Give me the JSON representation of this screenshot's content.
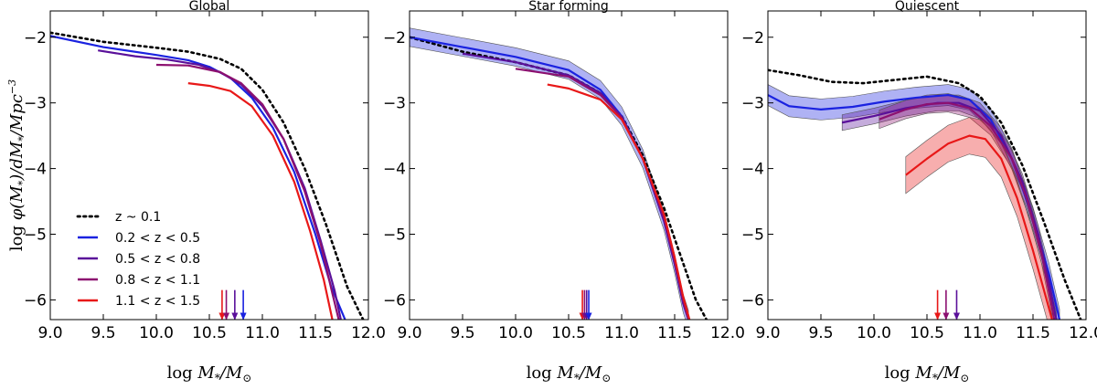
{
  "colors": {
    "local": "#000000",
    "z02_05": "#1a22e0",
    "z05_08": "#5a109a",
    "z08_11": "#8c1070",
    "z11_15": "#e81818"
  },
  "chart_data": [
    {
      "type": "line",
      "title": "Global",
      "xlabel": "log M*/M⊙",
      "ylabel": "log φ(M*)/dM*/Mpc⁻³",
      "xlim": [
        9.0,
        12.0
      ],
      "ylim": [
        -6.3,
        -1.6
      ],
      "xticks": [
        "9.0",
        "9.5",
        "10.0",
        "10.5",
        "11.0",
        "11.5",
        "12.0"
      ],
      "yticks": [
        "−2",
        "−3",
        "−4",
        "−5",
        "−6"
      ],
      "legend": {
        "position": "lower-left",
        "entries": [
          "z ~ 0.1",
          "0.2 < z < 0.5",
          "0.5 < z < 0.8",
          "0.8 < z < 1.1",
          "1.1 < z < 1.5"
        ]
      },
      "series": [
        {
          "key": "local",
          "style": "dotted",
          "x": [
            9.0,
            9.5,
            10.0,
            10.3,
            10.6,
            10.8,
            11.0,
            11.2,
            11.4,
            11.6,
            11.8,
            11.95
          ],
          "y": [
            -1.93,
            -2.07,
            -2.16,
            -2.22,
            -2.33,
            -2.48,
            -2.8,
            -3.3,
            -4.0,
            -4.85,
            -5.8,
            -6.3
          ]
        },
        {
          "key": "z02_05",
          "style": "solid",
          "x": [
            9.0,
            9.5,
            10.0,
            10.3,
            10.5,
            10.7,
            10.9,
            11.1,
            11.3,
            11.5,
            11.65,
            11.78
          ],
          "y": [
            -1.98,
            -2.15,
            -2.27,
            -2.35,
            -2.45,
            -2.62,
            -2.92,
            -3.38,
            -4.05,
            -5.0,
            -5.8,
            -6.3
          ]
        },
        {
          "key": "z05_08",
          "style": "solid",
          "x": [
            9.45,
            9.8,
            10.1,
            10.4,
            10.6,
            10.8,
            11.0,
            11.2,
            11.4,
            11.55,
            11.68,
            11.74
          ],
          "y": [
            -2.2,
            -2.29,
            -2.34,
            -2.42,
            -2.53,
            -2.72,
            -3.05,
            -3.55,
            -4.3,
            -5.1,
            -5.85,
            -6.3
          ]
        },
        {
          "key": "z08_11",
          "style": "solid",
          "x": [
            10.0,
            10.3,
            10.6,
            10.8,
            11.0,
            11.2,
            11.4,
            11.55,
            11.66,
            11.72
          ],
          "y": [
            -2.42,
            -2.43,
            -2.53,
            -2.7,
            -3.02,
            -3.55,
            -4.35,
            -5.15,
            -5.9,
            -6.3
          ]
        },
        {
          "key": "z11_15",
          "style": "solid",
          "x": [
            10.3,
            10.5,
            10.7,
            10.9,
            11.1,
            11.3,
            11.45,
            11.58,
            11.66
          ],
          "y": [
            -2.7,
            -2.74,
            -2.82,
            -3.05,
            -3.5,
            -4.2,
            -4.95,
            -5.7,
            -6.3
          ]
        }
      ],
      "arrows": [
        {
          "key": "z11_15",
          "x": 10.62
        },
        {
          "key": "z08_11",
          "x": 10.66
        },
        {
          "key": "z05_08",
          "x": 10.74
        },
        {
          "key": "z02_05",
          "x": 10.82
        }
      ]
    },
    {
      "type": "line",
      "title": "Star forming",
      "xlabel": "log M*/M⊙",
      "xlim": [
        9.0,
        12.0
      ],
      "ylim": [
        -6.3,
        -1.6
      ],
      "xticks": [
        "9.0",
        "9.5",
        "10.0",
        "10.5",
        "11.0",
        "11.5",
        "12.0"
      ],
      "yticks": [
        "−2",
        "−3",
        "−4",
        "−5",
        "−6"
      ],
      "series": [
        {
          "key": "local",
          "style": "dotted",
          "x": [
            9.0,
            9.5,
            10.0,
            10.5,
            10.8,
            11.0,
            11.2,
            11.4,
            11.55,
            11.7,
            11.8
          ],
          "y": [
            -2.0,
            -2.22,
            -2.38,
            -2.58,
            -2.85,
            -3.2,
            -3.8,
            -4.6,
            -5.3,
            -6.0,
            -6.3
          ]
        },
        {
          "key": "z02_05",
          "style": "solid",
          "band": 0.14,
          "x": [
            9.0,
            9.5,
            10.0,
            10.5,
            10.8,
            11.0,
            11.2,
            11.4,
            11.5,
            11.58,
            11.63
          ],
          "y": [
            -2.0,
            -2.15,
            -2.3,
            -2.5,
            -2.8,
            -3.2,
            -3.85,
            -4.8,
            -5.45,
            -6.05,
            -6.3
          ]
        },
        {
          "key": "z05_08",
          "style": "solid",
          "x": [
            9.5,
            10.0,
            10.5,
            10.8,
            11.0,
            11.2,
            11.4,
            11.5,
            11.58,
            11.63
          ],
          "y": [
            -2.25,
            -2.38,
            -2.58,
            -2.85,
            -3.22,
            -3.85,
            -4.8,
            -5.45,
            -6.05,
            -6.3
          ]
        },
        {
          "key": "z08_11",
          "style": "solid",
          "x": [
            10.0,
            10.5,
            10.8,
            11.0,
            11.2,
            11.4,
            11.5,
            11.58,
            11.63
          ],
          "y": [
            -2.48,
            -2.6,
            -2.88,
            -3.22,
            -3.85,
            -4.75,
            -5.4,
            -6.0,
            -6.3
          ]
        },
        {
          "key": "z11_15",
          "style": "solid",
          "x": [
            10.3,
            10.5,
            10.8,
            11.0,
            11.2,
            11.4,
            11.5,
            11.58,
            11.64
          ],
          "y": [
            -2.72,
            -2.78,
            -2.95,
            -3.25,
            -3.85,
            -4.7,
            -5.35,
            -5.95,
            -6.3
          ]
        }
      ],
      "arrows": [
        {
          "key": "z11_15",
          "x": 10.63
        },
        {
          "key": "z08_11",
          "x": 10.65
        },
        {
          "key": "z05_08",
          "x": 10.67
        },
        {
          "key": "z02_05",
          "x": 10.69
        }
      ]
    },
    {
      "type": "line",
      "title": "Quiescent",
      "xlabel": "log M*/M⊙",
      "xlim": [
        9.0,
        12.0
      ],
      "ylim": [
        -6.3,
        -1.6
      ],
      "xticks": [
        "9.0",
        "9.5",
        "10.0",
        "10.5",
        "11.0",
        "11.5",
        "12.0"
      ],
      "yticks": [
        "−2",
        "−3",
        "−4",
        "−5",
        "−6"
      ],
      "series": [
        {
          "key": "local",
          "style": "dotted",
          "x": [
            9.0,
            9.3,
            9.6,
            9.9,
            10.2,
            10.5,
            10.8,
            11.0,
            11.2,
            11.4,
            11.6,
            11.8,
            11.95
          ],
          "y": [
            -2.5,
            -2.58,
            -2.68,
            -2.7,
            -2.65,
            -2.6,
            -2.7,
            -2.9,
            -3.3,
            -3.95,
            -4.8,
            -5.7,
            -6.3
          ]
        },
        {
          "key": "z02_05",
          "style": "solid",
          "band": 0.16,
          "x": [
            9.0,
            9.2,
            9.5,
            9.8,
            10.1,
            10.4,
            10.7,
            10.9,
            11.1,
            11.3,
            11.5,
            11.65,
            11.75
          ],
          "y": [
            -2.88,
            -3.05,
            -3.1,
            -3.06,
            -2.98,
            -2.92,
            -2.88,
            -2.95,
            -3.25,
            -3.85,
            -4.75,
            -5.6,
            -6.3
          ]
        },
        {
          "key": "z05_08",
          "style": "solid",
          "band": 0.12,
          "x": [
            9.7,
            10.0,
            10.3,
            10.6,
            10.8,
            11.0,
            11.2,
            11.4,
            11.55,
            11.66,
            11.72
          ],
          "y": [
            -3.3,
            -3.2,
            -3.08,
            -3.0,
            -3.0,
            -3.12,
            -3.5,
            -4.2,
            -5.0,
            -5.8,
            -6.3
          ]
        },
        {
          "key": "z08_11",
          "style": "solid",
          "band": 0.14,
          "x": [
            10.05,
            10.3,
            10.5,
            10.7,
            10.9,
            11.1,
            11.3,
            11.45,
            11.58,
            11.66,
            11.7
          ],
          "y": [
            -3.25,
            -3.1,
            -3.02,
            -3.0,
            -3.08,
            -3.35,
            -3.85,
            -4.5,
            -5.3,
            -5.95,
            -6.3
          ]
        },
        {
          "key": "z11_15",
          "style": "solid",
          "band": 0.28,
          "x": [
            10.3,
            10.5,
            10.7,
            10.9,
            11.05,
            11.2,
            11.35,
            11.5,
            11.62,
            11.68
          ],
          "y": [
            -4.1,
            -3.85,
            -3.62,
            -3.5,
            -3.55,
            -3.85,
            -4.45,
            -5.25,
            -5.95,
            -6.3
          ]
        }
      ],
      "arrows": [
        {
          "key": "z11_15",
          "x": 10.6
        },
        {
          "key": "z08_11",
          "x": 10.68
        },
        {
          "key": "z05_08",
          "x": 10.78
        }
      ]
    }
  ]
}
